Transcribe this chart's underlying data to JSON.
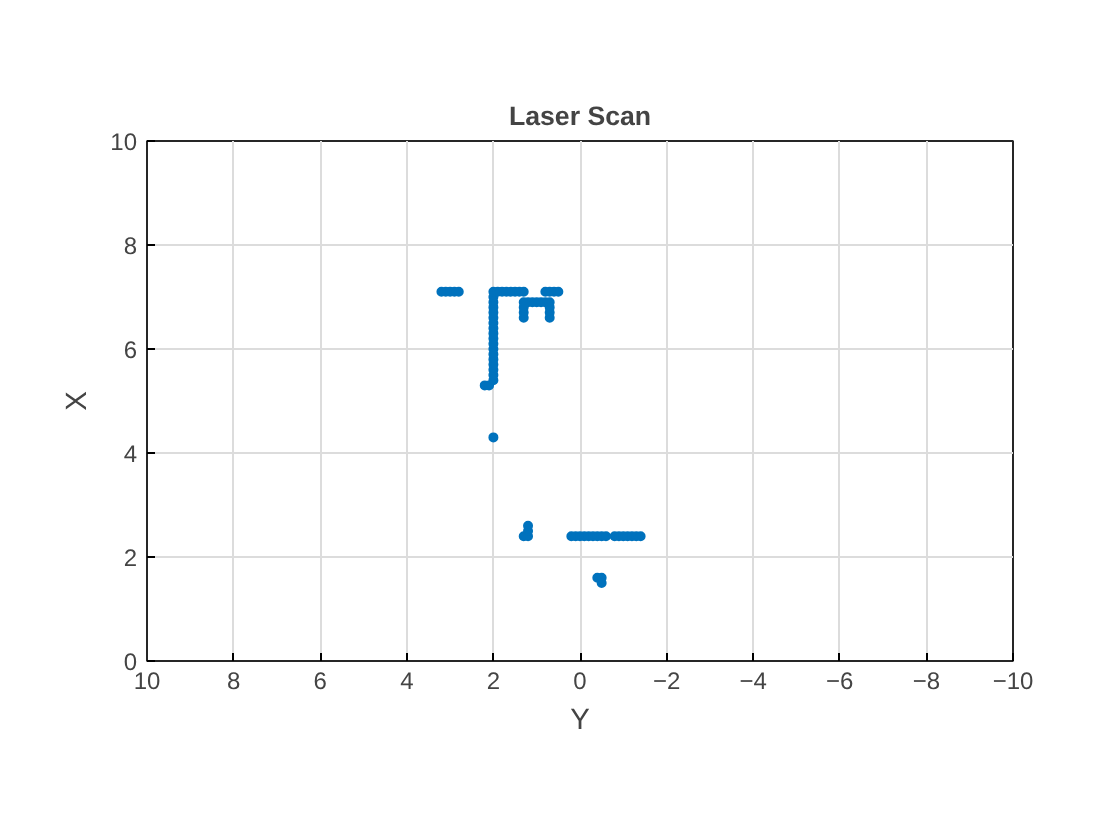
{
  "chart_data": {
    "type": "scatter",
    "title": "Laser Scan",
    "xlabel": "Y",
    "ylabel": "X",
    "xlim": [
      10,
      -10
    ],
    "xticks": [
      10,
      8,
      6,
      4,
      2,
      0,
      -2,
      -4,
      -6,
      -8,
      -10
    ],
    "ylim": [
      0,
      10
    ],
    "yticks": [
      0,
      2,
      4,
      6,
      8,
      10
    ],
    "grid": true,
    "marker": "circle",
    "series": [
      {
        "color": "#0072bd",
        "x": [
          3.2,
          3.1,
          3.0,
          2.9,
          2.8,
          2.0,
          2.0,
          2.0,
          2.0,
          2.0,
          2.0,
          2.0,
          2.0,
          2.0,
          2.0,
          2.0,
          2.0,
          2.0,
          2.0,
          2.0,
          2.0,
          2.0,
          2.0,
          2.2,
          2.1,
          1.9,
          1.8,
          1.7,
          1.6,
          1.5,
          1.4,
          1.3,
          1.3,
          1.2,
          1.1,
          1.0,
          0.9,
          0.8,
          0.7,
          1.3,
          1.3,
          1.3,
          0.7,
          0.7,
          0.7,
          0.8,
          0.7,
          0.6,
          0.5,
          2.0,
          1.3,
          1.2,
          1.2,
          1.2,
          0.2,
          0.1,
          0.0,
          -0.1,
          -0.2,
          -0.3,
          -0.4,
          -0.5,
          -0.6,
          -0.8,
          -0.9,
          -1.0,
          -1.1,
          -1.2,
          -1.3,
          -1.4,
          -0.5,
          -0.4,
          -0.5
        ],
        "values": [
          7.1,
          7.1,
          7.1,
          7.1,
          7.1,
          5.4,
          5.5,
          5.6,
          5.7,
          5.8,
          5.9,
          6.0,
          6.1,
          6.2,
          6.3,
          6.4,
          6.5,
          6.6,
          6.7,
          6.8,
          6.9,
          7.0,
          7.1,
          5.3,
          5.3,
          7.1,
          7.1,
          7.1,
          7.1,
          7.1,
          7.1,
          7.1,
          6.9,
          6.9,
          6.9,
          6.9,
          6.9,
          6.9,
          6.9,
          6.6,
          6.7,
          6.8,
          6.6,
          6.7,
          6.8,
          7.1,
          7.1,
          7.1,
          7.1,
          4.3,
          2.4,
          2.4,
          2.5,
          2.6,
          2.4,
          2.4,
          2.4,
          2.4,
          2.4,
          2.4,
          2.4,
          2.4,
          2.4,
          2.4,
          2.4,
          2.4,
          2.4,
          2.4,
          2.4,
          2.4,
          1.6,
          1.6,
          1.5
        ]
      }
    ]
  }
}
